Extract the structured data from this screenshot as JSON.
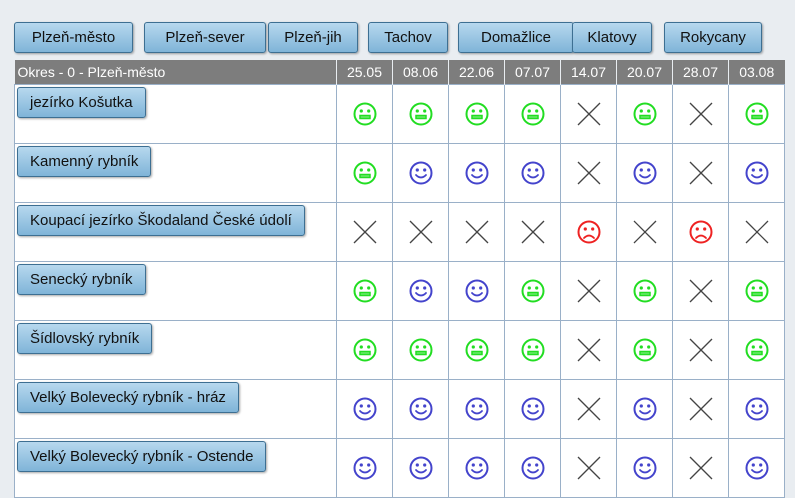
{
  "tabs": [
    {
      "label": "Plzeň-město"
    },
    {
      "label": "Plzeň-sever"
    },
    {
      "label": "Plzeň-jih"
    },
    {
      "label": "Tachov"
    },
    {
      "label": "Domažlice"
    },
    {
      "label": "Klatovy"
    },
    {
      "label": "Rokycany"
    }
  ],
  "table": {
    "header_label": "Okres - 0 - Plzeň-město",
    "dates": [
      "25.05",
      "08.06",
      "22.06",
      "07.07",
      "14.07",
      "20.07",
      "28.07",
      "03.08"
    ],
    "rows": [
      {
        "name": "jezírko Košutka",
        "statuses": [
          "green",
          "green",
          "green",
          "green",
          "none",
          "green",
          "none",
          "green"
        ]
      },
      {
        "name": "Kamenný rybník",
        "statuses": [
          "green",
          "blue",
          "blue",
          "blue",
          "none",
          "blue",
          "none",
          "blue"
        ]
      },
      {
        "name": "Koupací jezírko Škodaland České údolí",
        "statuses": [
          "none",
          "none",
          "none",
          "none",
          "red",
          "none",
          "red",
          "none"
        ]
      },
      {
        "name": "Senecký rybník",
        "statuses": [
          "green",
          "blue",
          "blue",
          "green",
          "none",
          "green",
          "none",
          "green"
        ]
      },
      {
        "name": "Šídlovský rybník",
        "statuses": [
          "green",
          "green",
          "green",
          "green",
          "none",
          "green",
          "none",
          "green"
        ]
      },
      {
        "name": "Velký Bolevecký rybník - hráz",
        "statuses": [
          "blue",
          "blue",
          "blue",
          "blue",
          "none",
          "blue",
          "none",
          "blue"
        ]
      },
      {
        "name": "Velký Bolevecký rybník - Ostende",
        "statuses": [
          "blue",
          "blue",
          "blue",
          "blue",
          "none",
          "blue",
          "none",
          "blue"
        ]
      }
    ]
  },
  "status_colors": {
    "green": "#22dd22",
    "blue": "#4444cc",
    "red": "#ee2222",
    "none": "#444444"
  },
  "status_icons": {
    "green": "neutral-face-icon",
    "blue": "smile-face-icon",
    "red": "sad-face-icon",
    "none": "cross-icon"
  }
}
